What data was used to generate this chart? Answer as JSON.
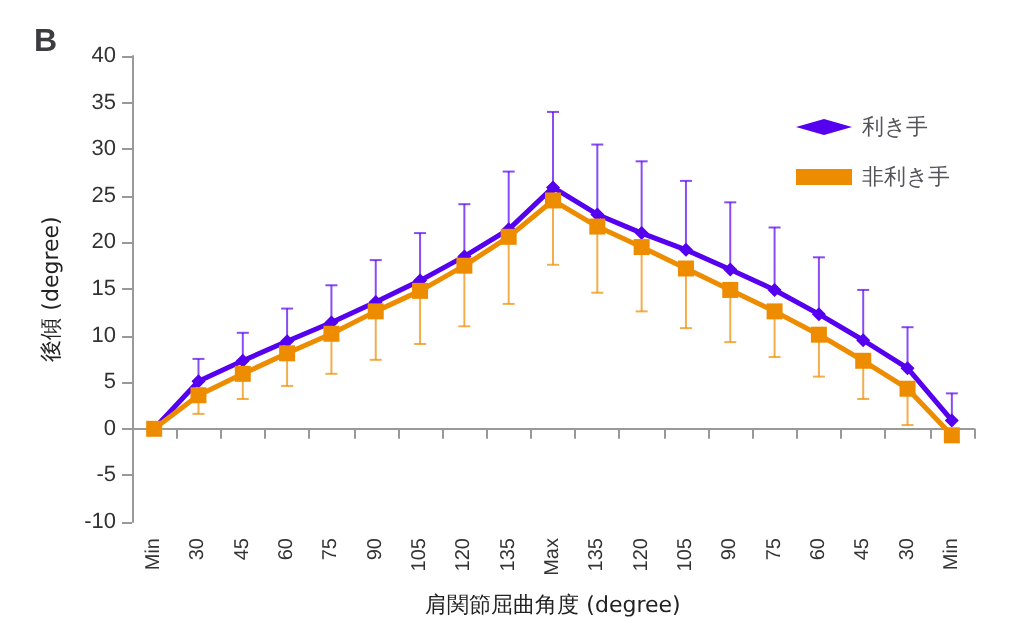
{
  "chart_data": {
    "type": "line",
    "title": "B",
    "xlabel": "肩関節屈曲角度 (degree)",
    "ylabel": "後傾 (degree)",
    "categories": [
      "Min",
      "30",
      "45",
      "60",
      "75",
      "90",
      "105",
      "120",
      "135",
      "Max",
      "135",
      "120",
      "105",
      "90",
      "75",
      "60",
      "45",
      "30",
      "Min"
    ],
    "series": [
      {
        "name": "利き手",
        "color": "#5500ee",
        "marker": "diamond",
        "values": [
          0,
          5.1,
          7.3,
          9.4,
          11.4,
          13.6,
          15.9,
          18.5,
          21.4,
          25.9,
          23,
          21,
          19.2,
          17.1,
          14.9,
          12.3,
          9.5,
          6.5,
          0.9
        ],
        "errors": [
          null,
          [
            5.1,
            7.5
          ],
          [
            7.3,
            10.3
          ],
          [
            9.4,
            12.9
          ],
          [
            11.4,
            15.4
          ],
          [
            13.6,
            18.1
          ],
          [
            15.9,
            21
          ],
          [
            18.5,
            24.1
          ],
          [
            21.4,
            27.6
          ],
          [
            25.9,
            34
          ],
          [
            23,
            30.5
          ],
          [
            21,
            28.7
          ],
          [
            19.2,
            26.6
          ],
          [
            17.1,
            24.3
          ],
          [
            14.9,
            21.6
          ],
          [
            12.3,
            18.4
          ],
          [
            9.5,
            14.9
          ],
          [
            6.5,
            10.9
          ],
          [
            0.9,
            3.8
          ]
        ]
      },
      {
        "name": "非利き手",
        "color": "#ee8c00",
        "marker": "square",
        "values": [
          0,
          3.6,
          5.9,
          8.1,
          10.2,
          12.6,
          14.8,
          17.5,
          20.6,
          24.5,
          21.7,
          19.5,
          17.2,
          14.9,
          12.6,
          10.1,
          7.3,
          4.3,
          -0.7
        ],
        "errors": [
          null,
          [
            1.6,
            3.6
          ],
          [
            3.2,
            5.9
          ],
          [
            4.6,
            8.1
          ],
          [
            5.9,
            10.2
          ],
          [
            7.4,
            12.6
          ],
          [
            9.1,
            14.8
          ],
          [
            11,
            17.5
          ],
          [
            13.4,
            20.6
          ],
          [
            17.6,
            24.5
          ],
          [
            14.6,
            21.7
          ],
          [
            12.6,
            19.5
          ],
          [
            10.8,
            17.2
          ],
          [
            9.3,
            14.9
          ],
          [
            7.7,
            12.6
          ],
          [
            5.6,
            10.1
          ],
          [
            3.2,
            7.3
          ],
          [
            0.4,
            4.3
          ],
          null
        ]
      }
    ],
    "ylim": [
      -10,
      40
    ],
    "yticks": [
      -10,
      -5,
      0,
      5,
      10,
      15,
      20,
      25,
      30,
      35,
      40
    ],
    "legend": "top right"
  }
}
